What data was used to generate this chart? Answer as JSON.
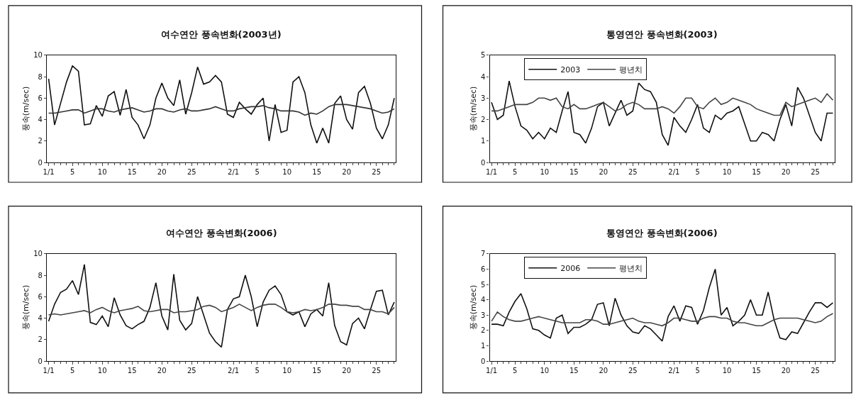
{
  "chart_data": [
    {
      "type": "line",
      "title": "여수연안 풍속변화(2003년)",
      "ylabel": "풍속(m/sec)",
      "categories": [
        "1/1",
        null,
        null,
        null,
        "5",
        null,
        null,
        null,
        null,
        "10",
        null,
        null,
        null,
        null,
        "15",
        null,
        null,
        null,
        null,
        "20",
        null,
        null,
        null,
        null,
        "25",
        null,
        null,
        null,
        null,
        null,
        null,
        "2/1",
        null,
        null,
        null,
        "5",
        null,
        null,
        null,
        null,
        "10",
        null,
        null,
        null,
        null,
        "15",
        null,
        null,
        null,
        null,
        "20",
        null,
        null,
        null,
        null,
        "25",
        null,
        null,
        null
      ],
      "ylim": [
        0,
        10
      ],
      "yticks": [
        0,
        2,
        4,
        6,
        8,
        10
      ],
      "series": [
        {
          "color": "#111111",
          "values": [
            7.8,
            3.5,
            5.5,
            7.5,
            9.0,
            8.5,
            3.5,
            3.6,
            5.3,
            4.3,
            6.2,
            6.6,
            4.4,
            6.8,
            4.2,
            3.5,
            2.2,
            3.5,
            6.0,
            7.4,
            6.0,
            5.3,
            7.7,
            4.5,
            6.5,
            8.9,
            7.3,
            7.5,
            8.1,
            7.5,
            4.5,
            4.2,
            5.6,
            5.0,
            4.5,
            5.4,
            6.0,
            2.0,
            5.4,
            2.8,
            3.0,
            7.5,
            8.0,
            6.5,
            3.5,
            1.8,
            3.2,
            1.8,
            5.5,
            6.2,
            4.0,
            3.1,
            6.5,
            7.1,
            5.5,
            3.2,
            2.2,
            3.5,
            6.0
          ]
        },
        {
          "color": "#333333",
          "values": [
            4.6,
            4.6,
            4.7,
            4.8,
            4.9,
            4.9,
            4.6,
            4.8,
            5.0,
            5.0,
            4.8,
            4.7,
            4.9,
            5.0,
            5.1,
            4.9,
            4.7,
            4.8,
            5.0,
            5.0,
            4.8,
            4.7,
            4.9,
            5.0,
            4.8,
            4.8,
            4.9,
            5.0,
            5.2,
            5.0,
            4.8,
            4.8,
            5.0,
            5.1,
            5.2,
            5.2,
            5.3,
            5.1,
            5.0,
            4.8,
            4.8,
            4.8,
            4.7,
            4.4,
            4.6,
            4.5,
            4.8,
            5.2,
            5.4,
            5.4,
            5.4,
            5.3,
            5.2,
            5.1,
            5.0,
            4.8,
            4.6,
            4.7,
            5.0
          ]
        }
      ]
    },
    {
      "type": "line",
      "title": "통영연안 풍속변화(2003)",
      "ylabel": "풍속(m/sec)",
      "categories": [
        "1/1",
        null,
        null,
        null,
        "5",
        null,
        null,
        null,
        null,
        "10",
        null,
        null,
        null,
        null,
        "15",
        null,
        null,
        null,
        null,
        "20",
        null,
        null,
        null,
        null,
        "25",
        null,
        null,
        null,
        null,
        null,
        null,
        "2/1",
        null,
        null,
        null,
        "5",
        null,
        null,
        null,
        null,
        "10",
        null,
        null,
        null,
        null,
        "15",
        null,
        null,
        null,
        null,
        "20",
        null,
        null,
        null,
        null,
        "25",
        null,
        null,
        null
      ],
      "ylim": [
        0,
        5
      ],
      "yticks": [
        0,
        1,
        2,
        3,
        4,
        5
      ],
      "legend": "top left",
      "series": [
        {
          "name": "2003",
          "color": "#111111",
          "values": [
            2.8,
            2.0,
            2.2,
            3.8,
            2.6,
            1.7,
            1.5,
            1.1,
            1.4,
            1.1,
            1.6,
            1.4,
            2.4,
            3.3,
            1.4,
            1.3,
            0.9,
            1.6,
            2.6,
            2.8,
            1.7,
            2.3,
            2.9,
            2.2,
            2.4,
            3.7,
            3.4,
            3.3,
            2.8,
            1.3,
            0.8,
            2.1,
            1.7,
            1.4,
            2.0,
            2.7,
            1.6,
            1.4,
            2.2,
            2.0,
            2.3,
            2.4,
            2.6,
            1.8,
            1.0,
            1.0,
            1.4,
            1.3,
            1.0,
            2.0,
            2.7,
            1.7,
            3.5,
            3.0,
            2.2,
            1.4,
            1.0,
            2.3,
            2.3
          ]
        },
        {
          "name": "평년치",
          "color": "#444444",
          "values": [
            2.4,
            2.4,
            2.5,
            2.6,
            2.7,
            2.7,
            2.7,
            2.8,
            3.0,
            3.0,
            2.9,
            3.0,
            2.6,
            2.5,
            2.7,
            2.5,
            2.5,
            2.6,
            2.7,
            2.8,
            2.6,
            2.4,
            2.5,
            2.7,
            2.8,
            2.7,
            2.5,
            2.5,
            2.5,
            2.6,
            2.5,
            2.3,
            2.6,
            3.0,
            3.0,
            2.6,
            2.5,
            2.8,
            3.0,
            2.7,
            2.8,
            3.0,
            2.9,
            2.8,
            2.7,
            2.5,
            2.4,
            2.3,
            2.2,
            2.2,
            2.8,
            2.6,
            2.7,
            2.8,
            2.9,
            3.0,
            2.8,
            3.2,
            2.9
          ]
        }
      ]
    },
    {
      "type": "line",
      "title": "여수연안 풍속변화(2006)",
      "ylabel": "풍속(m/sec)",
      "categories": [
        "1/1",
        null,
        null,
        null,
        "5",
        null,
        null,
        null,
        null,
        "10",
        null,
        null,
        null,
        null,
        "15",
        null,
        null,
        null,
        null,
        "20",
        null,
        null,
        null,
        null,
        "25",
        null,
        null,
        null,
        null,
        null,
        null,
        "2/1",
        null,
        null,
        null,
        "5",
        null,
        null,
        null,
        null,
        "10",
        null,
        null,
        null,
        null,
        "15",
        null,
        null,
        null,
        null,
        "20",
        null,
        null,
        null,
        null,
        "25",
        null,
        null,
        null
      ],
      "ylim": [
        0,
        10
      ],
      "yticks": [
        0,
        2,
        4,
        6,
        8,
        10
      ],
      "series": [
        {
          "color": "#111111",
          "values": [
            3.7,
            5.3,
            6.4,
            6.7,
            7.5,
            6.2,
            9.0,
            3.6,
            3.4,
            4.2,
            3.2,
            5.9,
            4.3,
            3.3,
            3.0,
            3.4,
            3.7,
            5.0,
            7.3,
            4.2,
            2.9,
            8.1,
            3.8,
            2.9,
            3.5,
            6.0,
            4.3,
            2.6,
            1.8,
            1.3,
            4.8,
            5.8,
            6.0,
            8.0,
            6.0,
            3.2,
            5.5,
            6.6,
            7.0,
            6.2,
            4.6,
            4.3,
            4.6,
            3.2,
            4.4,
            4.8,
            4.2,
            7.3,
            3.3,
            1.8,
            1.5,
            3.5,
            4.0,
            3.0,
            4.8,
            6.5,
            6.6,
            4.3,
            5.5
          ]
        },
        {
          "color": "#444444",
          "values": [
            4.3,
            4.4,
            4.3,
            4.4,
            4.5,
            4.6,
            4.7,
            4.5,
            4.8,
            5.0,
            4.7,
            4.5,
            4.7,
            4.8,
            4.9,
            5.1,
            4.7,
            4.6,
            4.7,
            4.8,
            4.8,
            4.5,
            4.6,
            4.6,
            4.7,
            4.8,
            5.1,
            5.2,
            5.0,
            4.6,
            4.8,
            5.0,
            5.3,
            5.0,
            4.7,
            5.0,
            5.2,
            5.3,
            5.3,
            5.0,
            4.6,
            4.5,
            4.6,
            4.8,
            4.7,
            4.8,
            5.0,
            5.3,
            5.3,
            5.2,
            5.2,
            5.1,
            5.1,
            4.8,
            4.8,
            4.6,
            4.6,
            4.4,
            5.0
          ]
        }
      ]
    },
    {
      "type": "line",
      "title": "통영연안 풍속변화(2006)",
      "ylabel": "풍속(m/sec)",
      "categories": [
        "1/1",
        null,
        null,
        null,
        "5",
        null,
        null,
        null,
        null,
        "10",
        null,
        null,
        null,
        null,
        "15",
        null,
        null,
        null,
        null,
        "20",
        null,
        null,
        null,
        null,
        "25",
        null,
        null,
        null,
        null,
        null,
        null,
        "2/1",
        null,
        null,
        null,
        "5",
        null,
        null,
        null,
        null,
        "10",
        null,
        null,
        null,
        null,
        "15",
        null,
        null,
        null,
        null,
        "20",
        null,
        null,
        null,
        null,
        "25",
        null,
        null,
        null
      ],
      "ylim": [
        0,
        7
      ],
      "yticks": [
        0,
        1,
        2,
        3,
        4,
        5,
        6,
        7
      ],
      "legend": "top left",
      "series": [
        {
          "name": "2006",
          "color": "#111111",
          "values": [
            2.4,
            2.4,
            2.3,
            3.2,
            3.9,
            4.4,
            3.4,
            2.1,
            2.0,
            1.7,
            1.5,
            2.8,
            3.0,
            1.8,
            2.2,
            2.2,
            2.4,
            2.7,
            3.7,
            3.8,
            2.3,
            4.1,
            3.0,
            2.3,
            1.9,
            1.8,
            2.3,
            2.1,
            1.7,
            1.3,
            2.9,
            3.6,
            2.6,
            3.6,
            3.5,
            2.4,
            3.3,
            4.8,
            6.0,
            3.0,
            3.5,
            2.3,
            2.6,
            3.0,
            4.0,
            3.0,
            3.0,
            4.5,
            2.7,
            1.5,
            1.4,
            1.9,
            1.8,
            2.5,
            3.2,
            3.8,
            3.8,
            3.5,
            3.8
          ]
        },
        {
          "name": "평년치",
          "color": "#444444",
          "values": [
            2.6,
            3.2,
            2.9,
            2.7,
            2.6,
            2.6,
            2.7,
            2.8,
            2.9,
            2.8,
            2.7,
            2.6,
            2.5,
            2.5,
            2.5,
            2.5,
            2.7,
            2.7,
            2.6,
            2.4,
            2.4,
            2.5,
            2.6,
            2.7,
            2.8,
            2.6,
            2.5,
            2.5,
            2.4,
            2.3,
            2.5,
            2.8,
            2.8,
            2.7,
            2.6,
            2.6,
            2.8,
            2.9,
            2.9,
            2.8,
            2.8,
            2.6,
            2.5,
            2.5,
            2.4,
            2.3,
            2.3,
            2.5,
            2.7,
            2.8,
            2.8,
            2.8,
            2.8,
            2.7,
            2.6,
            2.5,
            2.6,
            2.9,
            3.1
          ]
        }
      ]
    }
  ]
}
